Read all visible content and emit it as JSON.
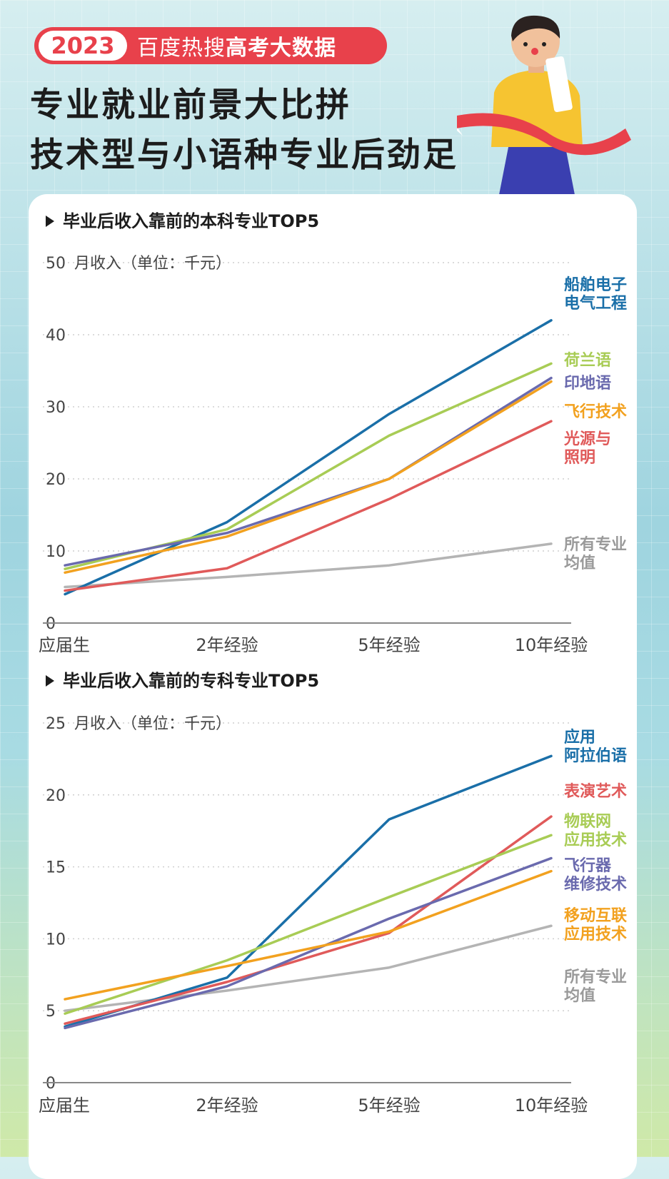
{
  "header": {
    "year": "2023",
    "badge_prefix": "百度热搜",
    "badge_bold": "高考大数据",
    "title_line1": "专业就业前景大比拼",
    "title_line2": "技术型与小语种专业后劲足"
  },
  "colors": {
    "dark_blue": "#1a6fa8",
    "light_green": "#a8cc55",
    "purple": "#6a6aae",
    "orange": "#f2a11f",
    "red": "#e05a5a",
    "gray": "#b4b4b4",
    "badge_red": "#e8414b"
  },
  "chart_data": [
    {
      "type": "line",
      "title": "毕业后收入靠前的本科专业TOP5",
      "ylabel": "月收入（单位：千元）",
      "categories": [
        "应届生",
        "2年经验",
        "5年经验",
        "10年经验"
      ],
      "ylim": [
        0,
        50
      ],
      "yticks": [
        "0",
        "10",
        "20",
        "30",
        "40",
        "50"
      ],
      "series": [
        {
          "name": "船舶电子电气工程",
          "label_lines": [
            "船舶电子",
            "电气工程"
          ],
          "color": "#1a6fa8",
          "values": [
            4,
            14,
            29,
            42
          ]
        },
        {
          "name": "荷兰语",
          "label_lines": [
            "荷兰语"
          ],
          "color": "#a8cc55",
          "values": [
            7.5,
            13,
            26,
            36
          ]
        },
        {
          "name": "印地语",
          "label_lines": [
            "印地语"
          ],
          "color": "#6a6aae",
          "values": [
            8,
            12.5,
            20,
            34
          ]
        },
        {
          "name": "飞行技术",
          "label_lines": [
            "飞行技术"
          ],
          "color": "#f2a11f",
          "values": [
            7,
            12,
            20,
            33.5
          ]
        },
        {
          "name": "光源与照明",
          "label_lines": [
            "光源与",
            "照明"
          ],
          "color": "#e05a5a",
          "values": [
            4.5,
            7.6,
            17.2,
            28
          ]
        },
        {
          "name": "所有专业均值",
          "label_lines": [
            "所有专业",
            "均值"
          ],
          "color": "#b4b4b4",
          "values": [
            5,
            6.4,
            8,
            11
          ]
        }
      ]
    },
    {
      "type": "line",
      "title": "毕业后收入靠前的专科专业TOP5",
      "ylabel": "月收入（单位：千元）",
      "categories": [
        "应届生",
        "2年经验",
        "5年经验",
        "10年经验"
      ],
      "ylim": [
        0,
        25
      ],
      "yticks": [
        "0",
        "5",
        "10",
        "15",
        "20",
        "25"
      ],
      "series": [
        {
          "name": "应用阿拉伯语",
          "label_lines": [
            "应用",
            "阿拉伯语"
          ],
          "color": "#1a6fa8",
          "values": [
            3.9,
            7.3,
            18.3,
            22.7
          ]
        },
        {
          "name": "表演艺术",
          "label_lines": [
            "表演艺术"
          ],
          "color": "#e05a5a",
          "values": [
            4.1,
            7.0,
            10.4,
            18.5
          ]
        },
        {
          "name": "物联网应用技术",
          "label_lines": [
            "物联网",
            "应用技术"
          ],
          "color": "#a8cc55",
          "values": [
            4.8,
            8.5,
            12.9,
            17.2
          ]
        },
        {
          "name": "飞行器维修技术",
          "label_lines": [
            "飞行器",
            "维修技术"
          ],
          "color": "#6a6aae",
          "values": [
            3.8,
            6.7,
            11.4,
            15.6
          ]
        },
        {
          "name": "移动互联应用技术",
          "label_lines": [
            "移动互联",
            "应用技术"
          ],
          "color": "#f2a11f",
          "values": [
            5.8,
            8.1,
            10.5,
            14.7
          ]
        },
        {
          "name": "所有专业均值",
          "label_lines": [
            "所有专业",
            "均值"
          ],
          "color": "#b4b4b4",
          "values": [
            5.0,
            6.4,
            8.0,
            10.9
          ]
        }
      ]
    }
  ]
}
